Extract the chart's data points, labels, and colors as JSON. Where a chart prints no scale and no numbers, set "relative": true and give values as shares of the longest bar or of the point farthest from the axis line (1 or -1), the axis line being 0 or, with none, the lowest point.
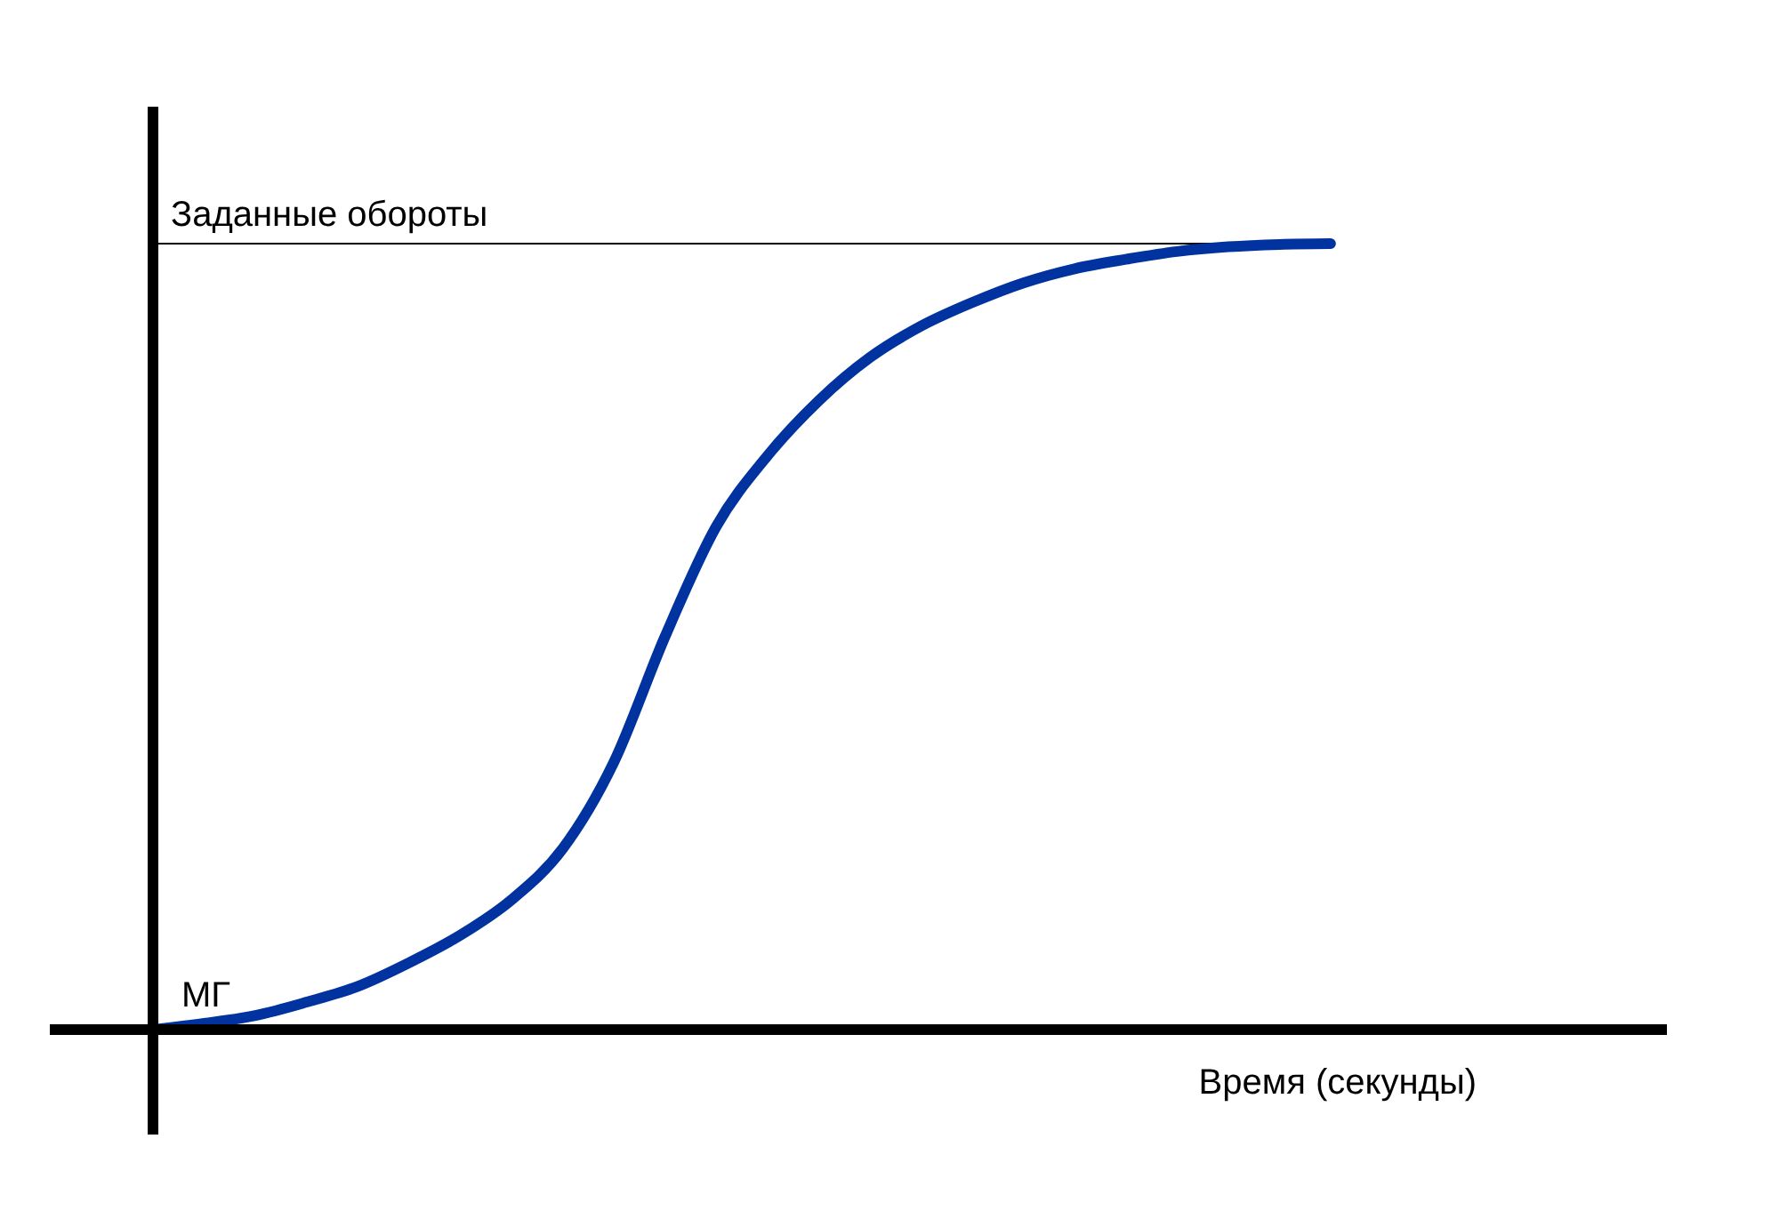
{
  "chart_data": {
    "type": "line",
    "relative": true,
    "xlabel": "Время (секунды)",
    "categories": [
      null,
      null,
      null,
      null,
      null,
      null,
      null,
      null,
      null,
      null,
      null,
      null,
      null,
      null,
      null,
      null,
      null,
      null,
      null,
      null,
      null,
      null,
      null,
      null,
      null,
      null,
      null,
      null,
      null,
      null
    ],
    "series": [
      {
        "color": "#0033a0",
        "values": [
          0,
          0.008,
          0.018,
          0.035,
          0.055,
          0.085,
          0.12,
          0.165,
          0.23,
          0.34,
          0.5,
          0.64,
          0.73,
          0.8,
          0.855,
          0.895,
          0.925,
          0.95,
          0.968,
          0.98,
          0.99,
          0.996,
          0.999,
          1,
          null,
          null,
          null,
          null,
          null,
          null
        ]
      }
    ],
    "ref_lines": [
      {
        "axis": "y",
        "value": 1,
        "label": "Заданные обороты",
        "color": "#000000"
      }
    ],
    "annotations": [
      "МГ"
    ],
    "line_style": "solid"
  }
}
